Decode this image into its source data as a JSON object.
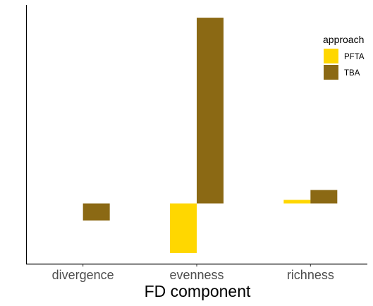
{
  "chart_data": {
    "type": "bar",
    "categories": [
      "divergence",
      "evenness",
      "richness"
    ],
    "series": [
      {
        "name": "PFTA",
        "color": "#FFD700",
        "values": [
          null,
          -0.7,
          0.05
        ]
      },
      {
        "name": "TBA",
        "color": "#8B6914",
        "values": [
          -0.24,
          2.62,
          0.19
        ]
      }
    ],
    "xlabel": "FD component",
    "ylabel": "",
    "ylim": [
      -0.85,
      2.8
    ],
    "y_ticks_shown": false,
    "grid": false,
    "legend": {
      "title": "approach",
      "position": "right"
    }
  }
}
